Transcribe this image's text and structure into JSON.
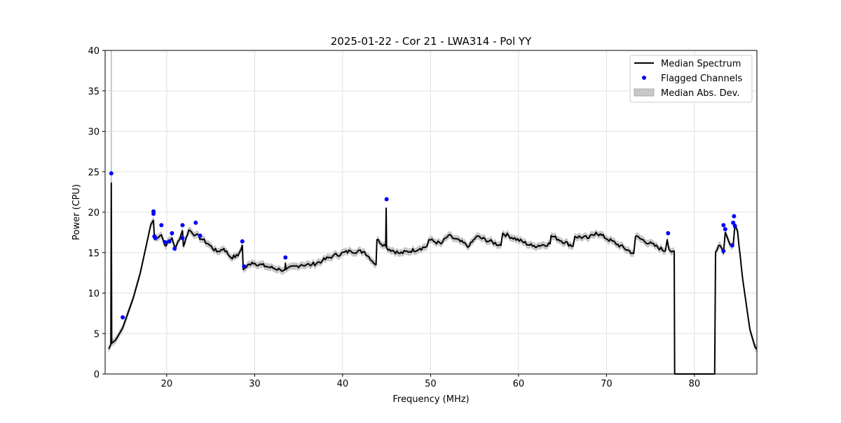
{
  "chart_data": {
    "type": "line",
    "title": "2025-01-22 - Cor 21 - LWA314 - Pol YY",
    "xlabel": "Frequency (MHz)",
    "ylabel": "Power (CPU)",
    "xlim": [
      13.0,
      87.1
    ],
    "ylim": [
      0,
      40
    ],
    "xticks": [
      20,
      30,
      40,
      50,
      60,
      70,
      80
    ],
    "yticks": [
      0,
      5,
      10,
      15,
      20,
      25,
      30,
      35,
      40
    ],
    "grid": true,
    "legend_position": "top-right",
    "legend": [
      "Median Spectrum",
      "Flagged Channels",
      "Median Abs. Dev."
    ],
    "mad_approx": 0.45,
    "colors": {
      "median": "#000000",
      "flagged": "#0000ff",
      "mad": "#c8c8c8"
    },
    "series": [
      {
        "name": "Median Spectrum",
        "points": [
          [
            13.4,
            3.1
          ],
          [
            13.65,
            3.6
          ],
          [
            13.7,
            23.6
          ],
          [
            13.75,
            3.8
          ],
          [
            14.2,
            4.2
          ],
          [
            15.0,
            5.7
          ],
          [
            16.2,
            9.4
          ],
          [
            17.0,
            12.5
          ],
          [
            18.2,
            18.5
          ],
          [
            18.5,
            19.0
          ],
          [
            18.6,
            16.8
          ],
          [
            19.4,
            17.2
          ],
          [
            19.8,
            15.9
          ],
          [
            20.6,
            16.8
          ],
          [
            21.0,
            15.5
          ],
          [
            21.8,
            17.7
          ],
          [
            21.9,
            15.8
          ],
          [
            22.5,
            17.8
          ],
          [
            23.3,
            17.2
          ],
          [
            24.1,
            16.6
          ],
          [
            24.9,
            15.9
          ],
          [
            25.7,
            15.1
          ],
          [
            26.5,
            15.5
          ],
          [
            27.3,
            14.4
          ],
          [
            28.1,
            14.6
          ],
          [
            28.6,
            15.9
          ],
          [
            28.7,
            12.9
          ],
          [
            29.7,
            13.8
          ],
          [
            31.3,
            13.3
          ],
          [
            32.9,
            12.9
          ],
          [
            33.45,
            12.9
          ],
          [
            33.5,
            13.7
          ],
          [
            33.55,
            12.9
          ],
          [
            35.3,
            13.5
          ],
          [
            36.5,
            13.5
          ],
          [
            37.7,
            14.0
          ],
          [
            38.9,
            14.6
          ],
          [
            40.9,
            15.2
          ],
          [
            42.5,
            15.1
          ],
          [
            43.8,
            13.5
          ],
          [
            43.9,
            16.6
          ],
          [
            44.9,
            15.8
          ],
          [
            44.95,
            20.5
          ],
          [
            45.0,
            15.6
          ],
          [
            46.5,
            14.9
          ],
          [
            48.8,
            15.5
          ],
          [
            49.6,
            15.8
          ],
          [
            49.8,
            16.6
          ],
          [
            51.2,
            16.1
          ],
          [
            52.0,
            17.1
          ],
          [
            54.4,
            15.8
          ],
          [
            55.2,
            17.0
          ],
          [
            58.0,
            15.9
          ],
          [
            58.2,
            17.4
          ],
          [
            61.6,
            15.8
          ],
          [
            63.6,
            16.1
          ],
          [
            63.7,
            17.1
          ],
          [
            66.2,
            15.8
          ],
          [
            66.4,
            17.0
          ],
          [
            68.0,
            16.8
          ],
          [
            68.8,
            17.5
          ],
          [
            73.1,
            14.9
          ],
          [
            73.3,
            17.0
          ],
          [
            76.7,
            15.2
          ],
          [
            76.9,
            16.6
          ],
          [
            77.1,
            15.4
          ],
          [
            77.7,
            15.2
          ],
          [
            77.75,
            0
          ],
          [
            82.3,
            0
          ],
          [
            82.4,
            15.1
          ],
          [
            82.9,
            15.9
          ],
          [
            83.3,
            14.9
          ],
          [
            83.5,
            17.5
          ],
          [
            84.0,
            16.1
          ],
          [
            84.4,
            15.9
          ],
          [
            84.6,
            18.4
          ],
          [
            84.9,
            17.7
          ],
          [
            85.5,
            11.6
          ],
          [
            86.3,
            5.5
          ],
          [
            86.9,
            3.3
          ],
          [
            87.1,
            3.1
          ]
        ]
      },
      {
        "name": "Flagged Channels",
        "points": [
          [
            13.7,
            24.8
          ],
          [
            15.0,
            7.0
          ],
          [
            18.5,
            20.1
          ],
          [
            18.5,
            19.8
          ],
          [
            18.6,
            17.0
          ],
          [
            18.7,
            16.8
          ],
          [
            19.4,
            18.4
          ],
          [
            19.8,
            16.3
          ],
          [
            20.3,
            16.4
          ],
          [
            20.6,
            17.4
          ],
          [
            20.9,
            15.5
          ],
          [
            21.8,
            18.4
          ],
          [
            21.8,
            16.8
          ],
          [
            23.3,
            18.7
          ],
          [
            23.8,
            17.1
          ],
          [
            28.6,
            16.4
          ],
          [
            28.8,
            13.3
          ],
          [
            33.5,
            14.4
          ],
          [
            45.0,
            21.6
          ],
          [
            77.0,
            17.4
          ],
          [
            83.3,
            18.4
          ],
          [
            83.5,
            17.9
          ],
          [
            83.3,
            15.2
          ],
          [
            84.3,
            15.9
          ],
          [
            84.4,
            18.7
          ],
          [
            84.5,
            19.5
          ],
          [
            84.6,
            18.3
          ]
        ]
      }
    ]
  }
}
